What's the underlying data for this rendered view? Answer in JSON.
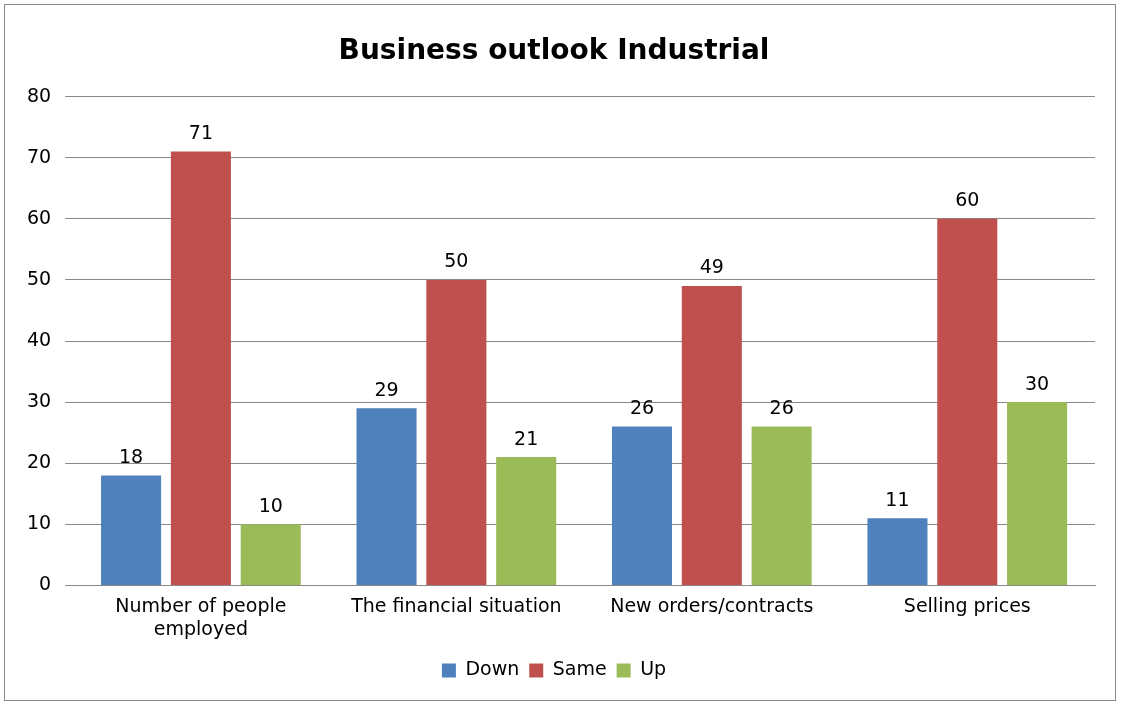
{
  "chart_data": {
    "type": "bar",
    "title": "Business outlook Industrial",
    "categories": [
      "Number of people employed",
      "The financial situation",
      "New orders/contracts",
      "Selling prices"
    ],
    "series": [
      {
        "name": "Down",
        "color": "#4f81bd",
        "values": [
          18,
          29,
          26,
          11
        ]
      },
      {
        "name": "Same",
        "color": "#c0504d",
        "values": [
          71,
          50,
          49,
          60
        ]
      },
      {
        "name": "Up",
        "color": "#9bbb59",
        "values": [
          10,
          21,
          26,
          30
        ]
      }
    ],
    "ylim": [
      0,
      80
    ],
    "yticks": [
      0,
      10,
      20,
      30,
      40,
      50,
      60,
      70,
      80
    ],
    "grid": "y",
    "legend": "bottom",
    "data_labels": true
  }
}
